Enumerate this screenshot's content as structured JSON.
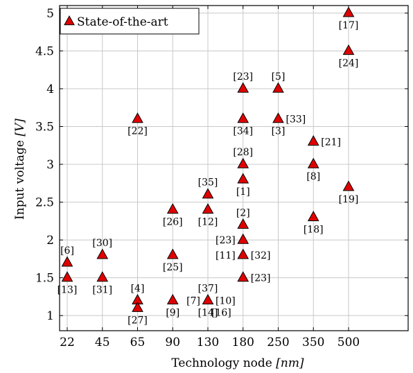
{
  "chart_data": {
    "type": "scatter",
    "xlabel_main": "Technology node ",
    "xlabel_unit": "[nm]",
    "ylabel_main": "Input voltage ",
    "ylabel_unit": "[V]",
    "x_scale": "categorical",
    "categories": [
      "22",
      "45",
      "65",
      "90",
      "130",
      "180",
      "250",
      "350",
      "500"
    ],
    "yticks": [
      "1",
      "1.5",
      "2",
      "2.5",
      "3",
      "3.5",
      "4",
      "4.5",
      "5"
    ],
    "ylim": [
      0.8,
      5.1
    ],
    "grid": true,
    "legend_position": "top-left",
    "marker": "triangle",
    "marker_color": "#e00000",
    "series": [
      {
        "name": "State-of-the-art",
        "points": [
          {
            "x": "22",
            "y": 1.7,
            "label": "[6]",
            "label_pos": "above"
          },
          {
            "x": "22",
            "y": 1.5,
            "label": "[13]",
            "label_pos": "below"
          },
          {
            "x": "45",
            "y": 1.8,
            "label": "[30]",
            "label_pos": "above"
          },
          {
            "x": "45",
            "y": 1.5,
            "label": "[31]",
            "label_pos": "below"
          },
          {
            "x": "65",
            "y": 3.6,
            "label": "[22]",
            "label_pos": "below"
          },
          {
            "x": "65",
            "y": 1.2,
            "label": "[4]",
            "label_pos": "above"
          },
          {
            "x": "65",
            "y": 1.1,
            "label": "[27]",
            "label_pos": "below"
          },
          {
            "x": "90",
            "y": 2.4,
            "label": "[26]",
            "label_pos": "below"
          },
          {
            "x": "90",
            "y": 1.8,
            "label": "[25]",
            "label_pos": "below"
          },
          {
            "x": "90",
            "y": 1.2,
            "label": "[9]",
            "label_pos": "below"
          },
          {
            "x": "130",
            "y": 2.6,
            "label": "[35]",
            "label_pos": "above"
          },
          {
            "x": "130",
            "y": 2.4,
            "label": "[12]",
            "label_pos": "below"
          },
          {
            "x": "130",
            "y": 1.2,
            "label": "[37]",
            "label_pos": "above"
          },
          {
            "x": "130",
            "y": 1.2,
            "label": "[7]",
            "label_pos": "left"
          },
          {
            "x": "130",
            "y": 1.2,
            "label": "[10]",
            "label_pos": "right"
          },
          {
            "x": "130",
            "y": 1.2,
            "label": "[14]",
            "label_pos": "below"
          },
          {
            "x": "130",
            "y": 1.2,
            "label": "[16]",
            "label_pos": "below-right"
          },
          {
            "x": "180",
            "y": 4.0,
            "label": "[23]",
            "label_pos": "above"
          },
          {
            "x": "180",
            "y": 3.6,
            "label": "[34]",
            "label_pos": "below"
          },
          {
            "x": "180",
            "y": 3.0,
            "label": "[28]",
            "label_pos": "above"
          },
          {
            "x": "180",
            "y": 2.8,
            "label": "[1]",
            "label_pos": "below"
          },
          {
            "x": "180",
            "y": 2.2,
            "label": "[2]",
            "label_pos": "above"
          },
          {
            "x": "180",
            "y": 2.0,
            "label": "[23]",
            "label_pos": "left"
          },
          {
            "x": "180",
            "y": 1.8,
            "label": "[11]",
            "label_pos": "left"
          },
          {
            "x": "180",
            "y": 1.8,
            "label": "[32]",
            "label_pos": "right"
          },
          {
            "x": "180",
            "y": 1.5,
            "label": "[23]",
            "label_pos": "right"
          },
          {
            "x": "250",
            "y": 4.0,
            "label": "[5]",
            "label_pos": "above"
          },
          {
            "x": "250",
            "y": 3.6,
            "label": "[3]",
            "label_pos": "below"
          },
          {
            "x": "250",
            "y": 3.6,
            "label": "[33]",
            "label_pos": "right"
          },
          {
            "x": "350",
            "y": 3.3,
            "label": "[21]",
            "label_pos": "right"
          },
          {
            "x": "350",
            "y": 3.0,
            "label": "[8]",
            "label_pos": "below"
          },
          {
            "x": "350",
            "y": 2.3,
            "label": "[18]",
            "label_pos": "below"
          },
          {
            "x": "500",
            "y": 5.0,
            "label": "[17]",
            "label_pos": "below"
          },
          {
            "x": "500",
            "y": 4.5,
            "label": "[24]",
            "label_pos": "below"
          },
          {
            "x": "500",
            "y": 2.7,
            "label": "[19]",
            "label_pos": "below"
          }
        ]
      }
    ]
  }
}
